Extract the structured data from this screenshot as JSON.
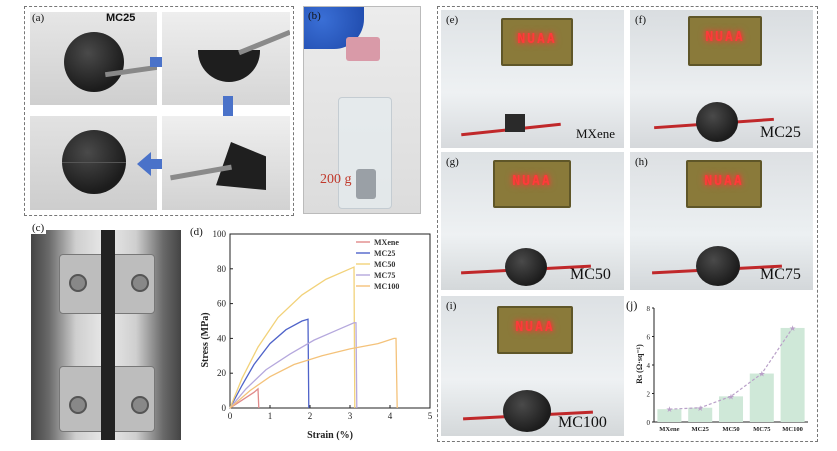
{
  "panel_a": {
    "label": "(a)",
    "sample_name": "MC25"
  },
  "panel_b": {
    "label": "(b)",
    "weight_text": "200 g"
  },
  "panel_c": {
    "label": "(c)"
  },
  "panel_d": {
    "label": "(d)",
    "chart_data": {
      "type": "line",
      "xlabel": "Strain (%)",
      "ylabel": "Stress (MPa)",
      "xlim": [
        0,
        5
      ],
      "ylim": [
        0,
        100
      ],
      "xticks": [
        0,
        1,
        2,
        3,
        4,
        5
      ],
      "yticks": [
        0,
        20,
        40,
        60,
        80,
        100
      ],
      "legend_position": "top-right",
      "series": [
        {
          "name": "MXene",
          "color": "#e08a8a",
          "x": [
            0,
            0.2,
            0.4,
            0.6,
            0.7,
            0.72
          ],
          "y": [
            0,
            3,
            6,
            9,
            11,
            0
          ]
        },
        {
          "name": "MC25",
          "color": "#4f63c9",
          "x": [
            0,
            0.3,
            0.6,
            1.0,
            1.4,
            1.8,
            1.95,
            1.97
          ],
          "y": [
            0,
            13,
            25,
            37,
            45,
            50,
            51,
            0
          ]
        },
        {
          "name": "MC50",
          "color": "#f2d27a",
          "x": [
            0,
            0.3,
            0.7,
            1.2,
            1.8,
            2.4,
            3.0,
            3.1,
            3.12
          ],
          "y": [
            0,
            17,
            35,
            52,
            65,
            74,
            80,
            81,
            0
          ]
        },
        {
          "name": "MC75",
          "color": "#b5a8dd",
          "x": [
            0,
            0.4,
            0.9,
            1.5,
            2.1,
            2.7,
            3.1,
            3.15,
            3.17
          ],
          "y": [
            0,
            11,
            22,
            31,
            39,
            45,
            49,
            49,
            0
          ]
        },
        {
          "name": "MC100",
          "color": "#f4c27a",
          "x": [
            0,
            0.5,
            1.0,
            1.6,
            2.3,
            3.0,
            3.7,
            4.1,
            4.15,
            4.18
          ],
          "y": [
            0,
            10,
            18,
            25,
            30,
            34,
            37,
            40,
            40,
            0
          ]
        }
      ]
    }
  },
  "panel_e": {
    "label": "(e)",
    "sample_name": "MXene",
    "led_text": "NUAA"
  },
  "panel_f": {
    "label": "(f)",
    "sample_name": "MC25",
    "led_text": "NUAA"
  },
  "panel_g": {
    "label": "(g)",
    "sample_name": "MC50",
    "led_text": "NUAA"
  },
  "panel_h": {
    "label": "(h)",
    "sample_name": "MC75",
    "led_text": "NUAA"
  },
  "panel_i": {
    "label": "(i)",
    "sample_name": "MC100",
    "led_text": "NUAA"
  },
  "panel_j": {
    "label": "(j)",
    "chart_data": {
      "type": "bar",
      "categories": [
        "MXene",
        "MC25",
        "MC50",
        "MC75",
        "MC100"
      ],
      "values": [
        0.9,
        1.0,
        1.8,
        3.4,
        6.6
      ],
      "ylabel": "Rs (Ω·sq⁻¹)",
      "ylim": [
        0,
        8
      ],
      "yticks": [
        0,
        2,
        4,
        6,
        8
      ],
      "bar_color": "#cfe8d8",
      "trend_color": "#b9a0c8"
    }
  }
}
